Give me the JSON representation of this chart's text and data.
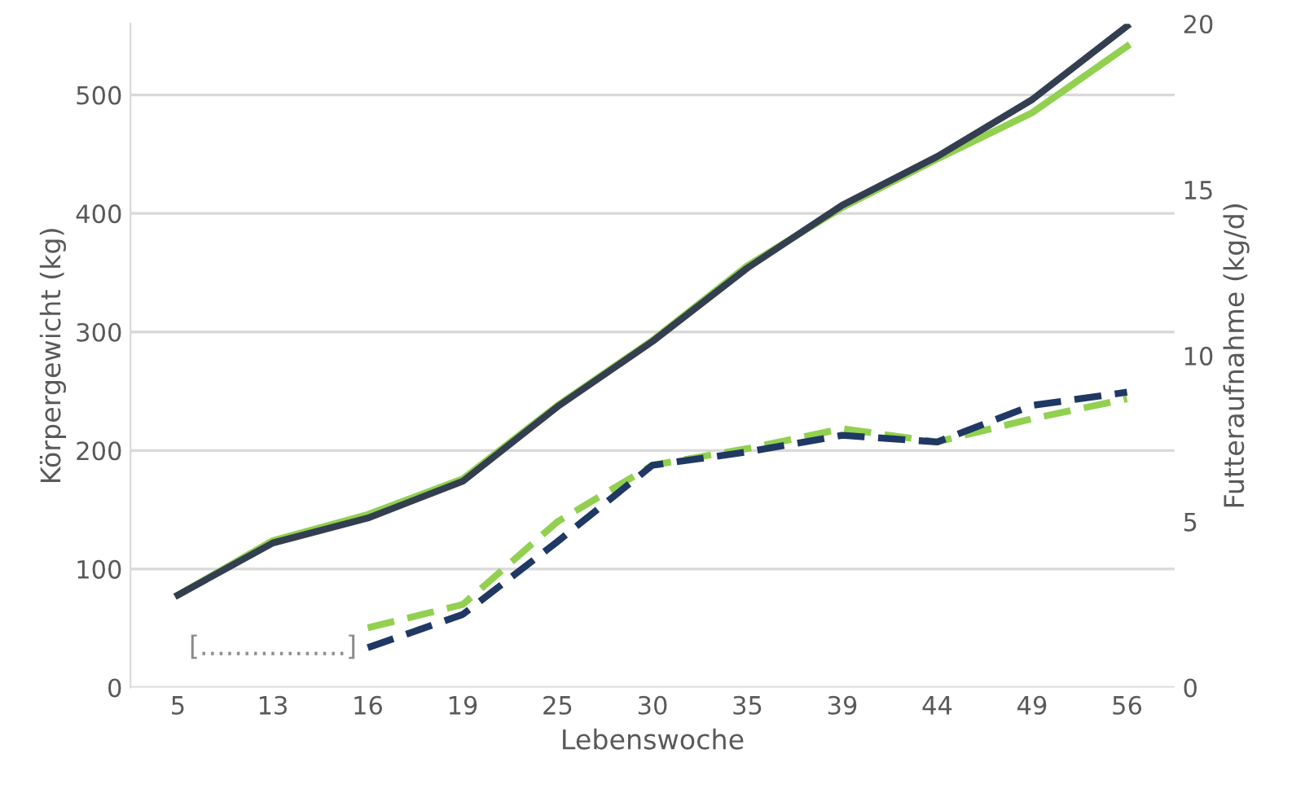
{
  "chart_data": {
    "type": "line",
    "xlabel": "Lebenswoche",
    "ylabel": "Körpergewicht (kg)",
    "y2label": "Futteraufnahme (kg/d)",
    "categories": [
      "5",
      "13",
      "16",
      "19",
      "25",
      "30",
      "35",
      "39",
      "44",
      "49",
      "56"
    ],
    "series": [
      {
        "color": "#92d050",
        "line_style": "solid",
        "values": [
          78,
          124,
          146,
          176,
          238,
          293,
          356,
          405,
          446,
          485,
          541
        ]
      },
      {
        "color": "#333f50",
        "line_style": "solid",
        "values": [
          78,
          122,
          143,
          174,
          237,
          292,
          354,
          407,
          448,
          496,
          558
        ]
      },
      {
        "color": "#92d050",
        "line_style": "dashed",
        "axis": "y2",
        "values": [
          null,
          null,
          1.8,
          2.5,
          5.0,
          6.7,
          7.2,
          7.8,
          7.4,
          8.1,
          8.7
        ]
      },
      {
        "color": "#1f3864",
        "line_style": "dashed",
        "axis": "y2",
        "values": [
          null,
          null,
          1.2,
          2.2,
          4.4,
          6.7,
          7.1,
          7.6,
          7.4,
          8.5,
          8.9
        ]
      }
    ],
    "annotations": [
      "[.................]"
    ],
    "ylim": [
      0,
      560
    ],
    "yticks": [
      0,
      100,
      200,
      300,
      400,
      500
    ],
    "y2lim": [
      0,
      20
    ],
    "y2ticks": [
      0,
      5,
      10,
      15,
      20
    ],
    "grid": "y",
    "legend": false,
    "marker": "none"
  }
}
